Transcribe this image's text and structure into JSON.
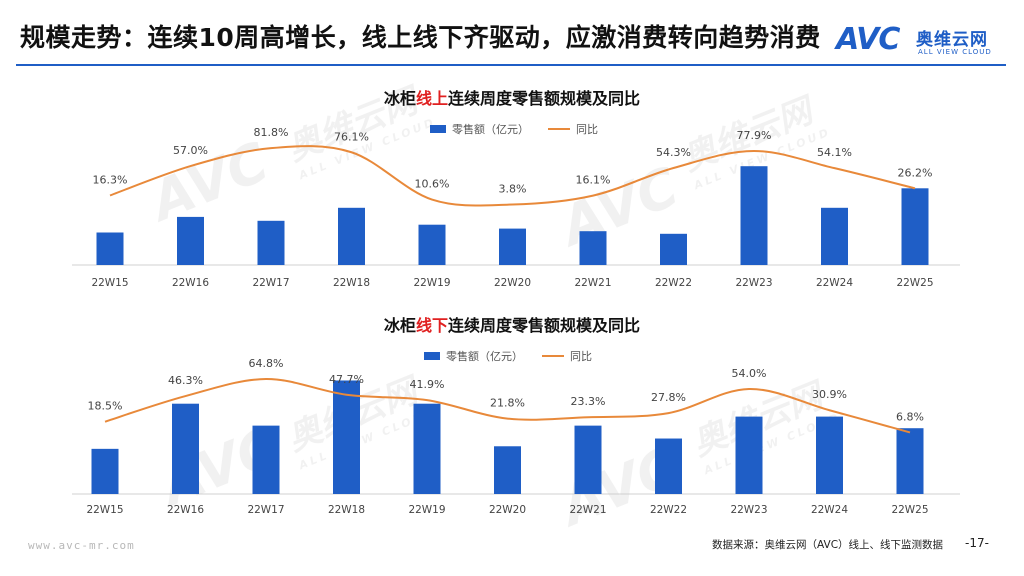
{
  "header": {
    "title": "规模走势：连续10周高增长，线上线下齐驱动，应激消费转向趋势消费",
    "logo_mark": "AVC",
    "logo_cn": "奥维云网",
    "logo_en": "ALL VIEW CLOUD"
  },
  "watermark": {
    "mark": "AVC",
    "cn": "奥维云网",
    "en": "ALL VIEW CLOUD"
  },
  "colors": {
    "bar": "#1f5ec6",
    "line": "#e8893a",
    "accent_red": "#e02020",
    "title_rule": "#1f5ec6"
  },
  "chart_data": [
    {
      "type": "bar",
      "title_parts": [
        "冰柜",
        "线上",
        "连续周度零售额规模及同比"
      ],
      "categories": [
        "22W15",
        "22W16",
        "22W17",
        "22W18",
        "22W19",
        "22W20",
        "22W21",
        "22W22",
        "22W23",
        "22W24",
        "22W25"
      ],
      "legend": [
        "零售额（亿元）",
        "同比"
      ],
      "series": [
        {
          "name": "零售额（亿元）",
          "kind": "bar",
          "values": [
            0.25,
            0.37,
            0.34,
            0.44,
            0.31,
            0.28,
            0.26,
            0.24,
            0.76,
            0.44,
            0.59
          ]
        },
        {
          "name": "同比",
          "kind": "line",
          "values": [
            16.3,
            57.0,
            81.8,
            76.1,
            10.6,
            3.8,
            16.1,
            54.3,
            77.9,
            54.1,
            26.2
          ]
        }
      ],
      "data_labels": [
        "16.3%",
        "57.0%",
        "81.8%",
        "76.1%",
        "10.6%",
        "3.8%",
        "16.1%",
        "54.3%",
        "77.9%",
        "54.1%",
        "26.2%"
      ],
      "bar_range": [
        0,
        1.0
      ],
      "line_range": [
        -80,
        100
      ]
    },
    {
      "type": "bar",
      "title_parts": [
        "冰柜",
        "线下",
        "连续周度零售额规模及同比"
      ],
      "categories": [
        "22W15",
        "22W16",
        "22W17",
        "22W18",
        "22W19",
        "22W20",
        "22W21",
        "22W22",
        "22W23",
        "22W24",
        "22W25"
      ],
      "legend": [
        "零售额（亿元）",
        "同比"
      ],
      "series": [
        {
          "name": "零售额（亿元）",
          "kind": "bar",
          "values": [
            0.35,
            0.7,
            0.53,
            0.88,
            0.7,
            0.37,
            0.53,
            0.43,
            0.6,
            0.6,
            0.51
          ]
        },
        {
          "name": "同比",
          "kind": "line",
          "values": [
            18.5,
            46.3,
            64.8,
            47.7,
            41.9,
            21.8,
            23.3,
            27.8,
            54.0,
            30.9,
            6.8
          ]
        }
      ],
      "data_labels": [
        "18.5%",
        "46.3%",
        "64.8%",
        "47.7%",
        "41.9%",
        "21.8%",
        "23.3%",
        "27.8%",
        "54.0%",
        "30.9%",
        "6.8%"
      ],
      "bar_range": [
        0,
        1.0
      ],
      "line_range": [
        -60,
        80
      ]
    }
  ],
  "footer": {
    "url": "www.avc-mr.com",
    "source": "数据来源：奥维云网（AVC）线上、线下监测数据",
    "page": "-17-"
  }
}
